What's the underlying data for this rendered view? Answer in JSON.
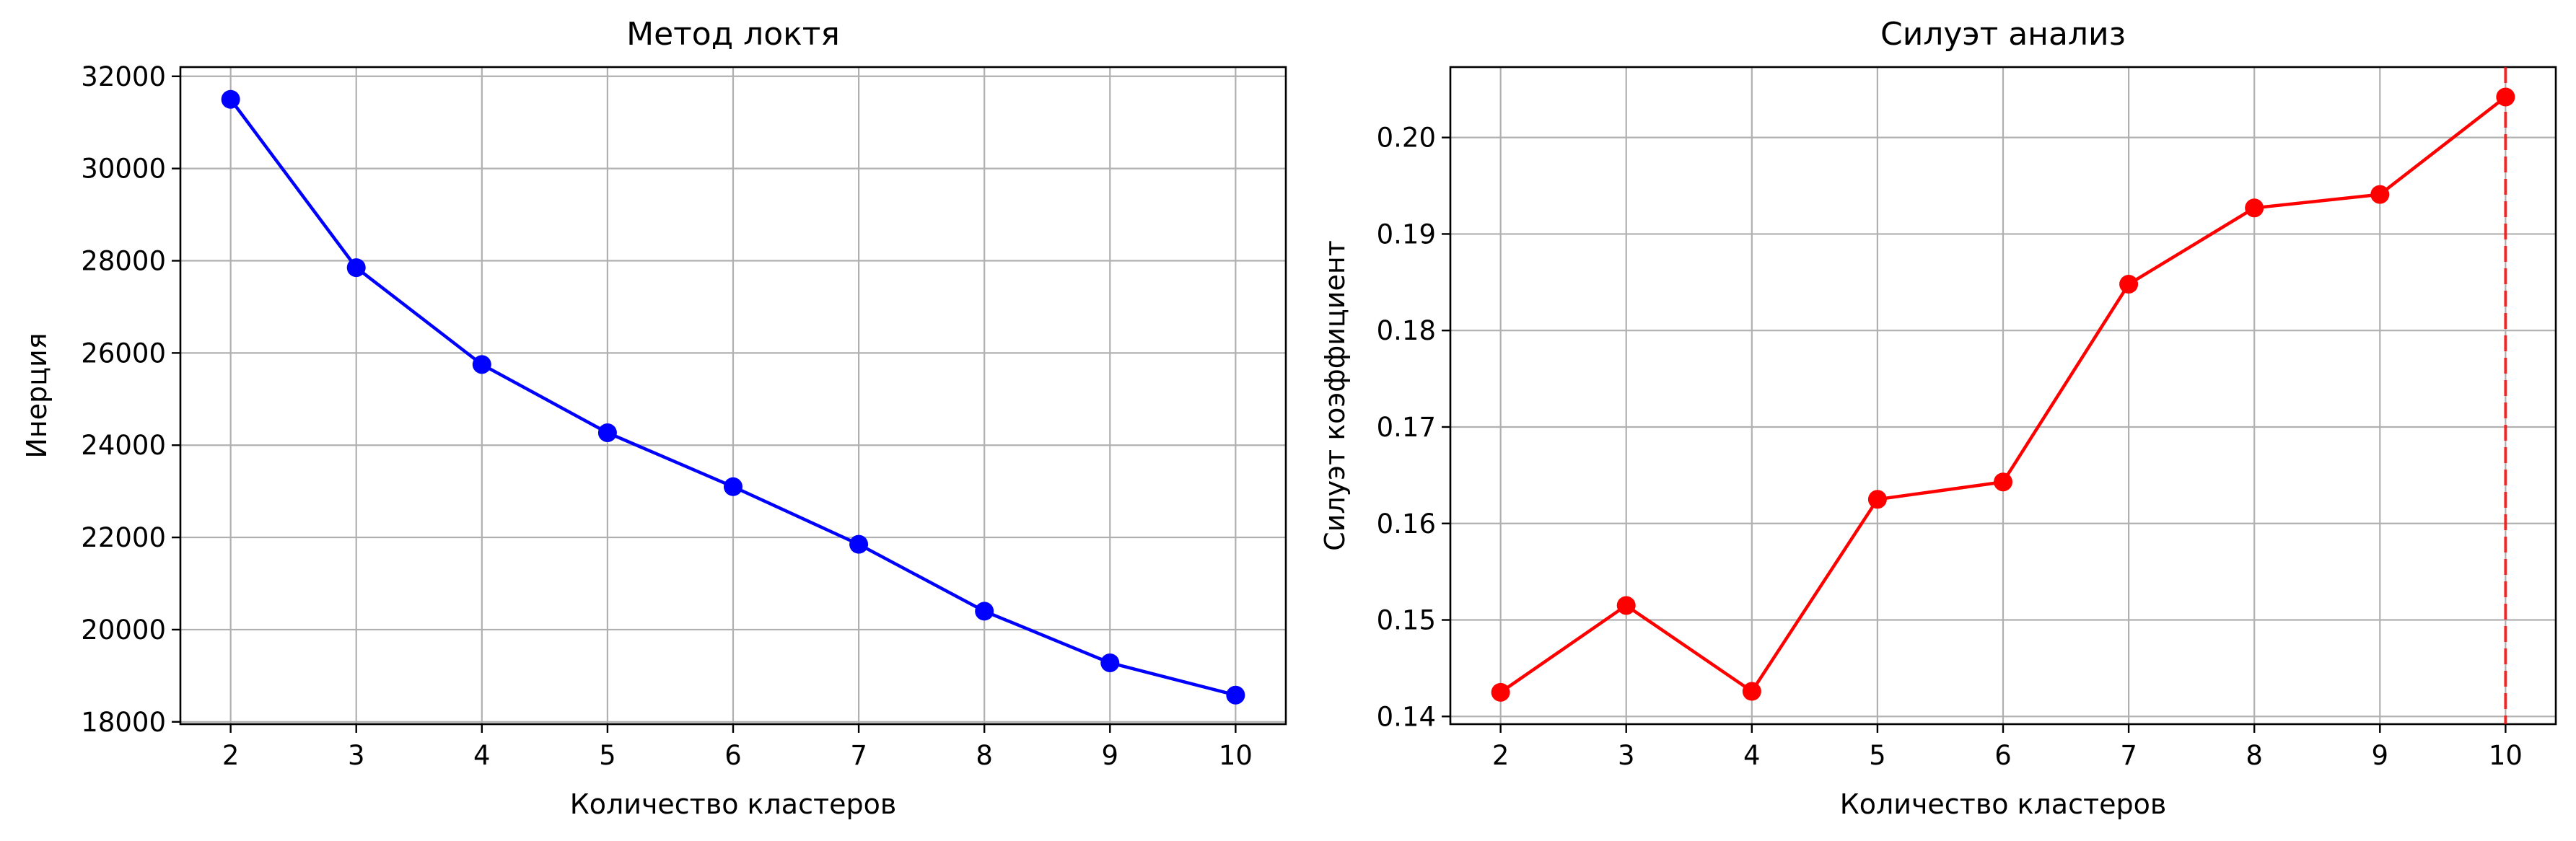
{
  "chart_data": [
    {
      "type": "line",
      "title": "Метод локтя",
      "xlabel": "Количество кластеров",
      "ylabel": "Инерция",
      "x": [
        2,
        3,
        4,
        5,
        6,
        7,
        8,
        9,
        10
      ],
      "x_ticks": [
        "2",
        "3",
        "4",
        "5",
        "6",
        "7",
        "8",
        "9",
        "10"
      ],
      "y_ticks": [
        "18000",
        "20000",
        "22000",
        "24000",
        "26000",
        "28000",
        "30000",
        "32000"
      ],
      "y_tick_values": [
        18000,
        20000,
        22000,
        24000,
        26000,
        28000,
        30000,
        32000
      ],
      "xlim": [
        1.6,
        10.4
      ],
      "ylim": [
        17950,
        32200
      ],
      "grid": true,
      "series": [
        {
          "color": "#0000ff",
          "marker": "circle",
          "values": [
            31500,
            27850,
            25750,
            24270,
            23100,
            21850,
            20400,
            19280,
            18580
          ]
        }
      ]
    },
    {
      "type": "line",
      "title": "Силуэт анализ",
      "xlabel": "Количество кластеров",
      "ylabel": "Силуэт коэффициент",
      "x": [
        2,
        3,
        4,
        5,
        6,
        7,
        8,
        9,
        10
      ],
      "x_ticks": [
        "2",
        "3",
        "4",
        "5",
        "6",
        "7",
        "8",
        "9",
        "10"
      ],
      "y_ticks": [
        "0.14",
        "0.15",
        "0.16",
        "0.17",
        "0.18",
        "0.19",
        "0.20"
      ],
      "y_tick_values": [
        0.14,
        0.15,
        0.16,
        0.17,
        0.18,
        0.19,
        0.2
      ],
      "xlim": [
        1.6,
        10.4
      ],
      "ylim": [
        0.1392,
        0.2073
      ],
      "grid": true,
      "vline": {
        "x": 10,
        "color": "#ff0000",
        "style": "dashed"
      },
      "series": [
        {
          "color": "#ff0000",
          "marker": "circle",
          "values": [
            0.1425,
            0.1515,
            0.1426,
            0.1625,
            0.1643,
            0.1848,
            0.1927,
            0.1941,
            0.2042
          ]
        }
      ]
    }
  ]
}
